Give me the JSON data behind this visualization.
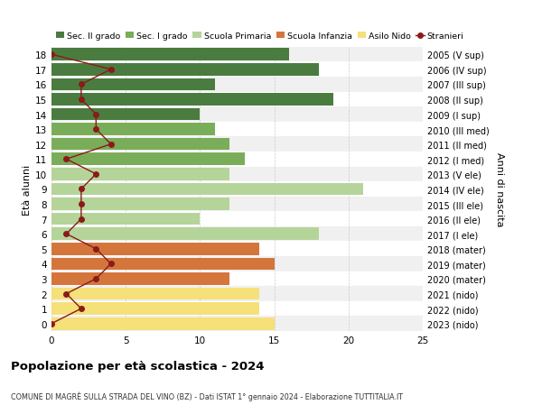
{
  "ages": [
    18,
    17,
    16,
    15,
    14,
    13,
    12,
    11,
    10,
    9,
    8,
    7,
    6,
    5,
    4,
    3,
    2,
    1,
    0
  ],
  "labels_right": [
    "2005 (V sup)",
    "2006 (IV sup)",
    "2007 (III sup)",
    "2008 (II sup)",
    "2009 (I sup)",
    "2010 (III med)",
    "2011 (II med)",
    "2012 (I med)",
    "2013 (V ele)",
    "2014 (IV ele)",
    "2015 (III ele)",
    "2016 (II ele)",
    "2017 (I ele)",
    "2018 (mater)",
    "2019 (mater)",
    "2020 (mater)",
    "2021 (nido)",
    "2022 (nido)",
    "2023 (nido)"
  ],
  "bar_values": [
    16,
    18,
    11,
    19,
    10,
    11,
    12,
    13,
    12,
    21,
    12,
    10,
    18,
    14,
    15,
    12,
    14,
    14,
    15
  ],
  "bar_colors": [
    "#4a7c3f",
    "#4a7c3f",
    "#4a7c3f",
    "#4a7c3f",
    "#4a7c3f",
    "#7aad5a",
    "#7aad5a",
    "#7aad5a",
    "#b5d49a",
    "#b5d49a",
    "#b5d49a",
    "#b5d49a",
    "#b5d49a",
    "#d4763b",
    "#d4763b",
    "#d4763b",
    "#f5e07a",
    "#f5e07a",
    "#f5e07a"
  ],
  "stranieri_values": [
    0,
    4,
    2,
    2,
    3,
    3,
    4,
    1,
    3,
    2,
    2,
    2,
    1,
    3,
    4,
    3,
    1,
    2,
    0
  ],
  "stranieri_color": "#8b1a1a",
  "legend_items": [
    {
      "label": "Sec. II grado",
      "color": "#4a7c3f",
      "is_line": false
    },
    {
      "label": "Sec. I grado",
      "color": "#7aad5a",
      "is_line": false
    },
    {
      "label": "Scuola Primaria",
      "color": "#b5d49a",
      "is_line": false
    },
    {
      "label": "Scuola Infanzia",
      "color": "#d4763b",
      "is_line": false
    },
    {
      "label": "Asilo Nido",
      "color": "#f5e07a",
      "is_line": false
    },
    {
      "label": "Stranieri",
      "color": "#8b1a1a",
      "is_line": true
    }
  ],
  "ylabel_left": "Età alunni",
  "ylabel_right": "Anni di nascita",
  "xlim": [
    0,
    25
  ],
  "xticks": [
    0,
    5,
    10,
    15,
    20,
    25
  ],
  "title": "Popolazione per età scolastica - 2024",
  "subtitle": "COMUNE DI MAGRÈ SULLA STRADA DEL VINO (BZ) - Dati ISTAT 1° gennaio 2024 - Elaborazione TUTTITALIA.IT",
  "bg_color": "#ffffff",
  "row_alt_color": "#f0f0f0",
  "grid_color": "#cccccc",
  "bar_height": 0.82
}
